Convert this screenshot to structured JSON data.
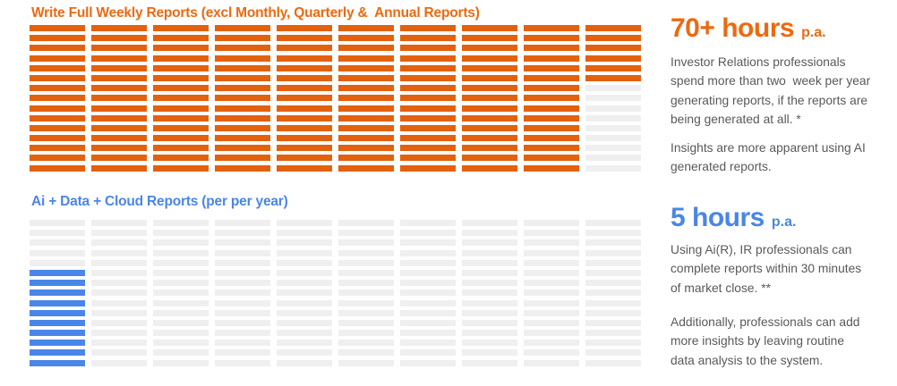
{
  "colors": {
    "orange_heading": "#EC6911",
    "orange_fill": "#E3610E",
    "blue_heading": "#4A86E8",
    "blue_fill": "#4A86E8",
    "empty_cell": "#EFEFEF",
    "body_text": "#595959"
  },
  "top_section": {
    "title": "Write Full Weekly Reports (excl Monthly, Quarterly &  Annual Reports)",
    "stat": {
      "value": "70+ hours",
      "suffix": "p.a."
    },
    "paragraphs": [
      "Investor Relations professionals\nspend more than two  week per year\ngenerating reports, if the reports are\nbeing generated at all. *",
      "Insights are more apparent using AI\ngenerated reports."
    ],
    "grid": {
      "rows": 15,
      "columns": 10,
      "fill_from": "top",
      "column_fill_counts": [
        15,
        15,
        15,
        15,
        15,
        15,
        15,
        15,
        15,
        6
      ],
      "fill_color": "#E3610E",
      "empty_color": "#EFEFEF"
    }
  },
  "bottom_section": {
    "title": "Ai + Data + Cloud Reports (per per year)",
    "stat": {
      "value": "5 hours",
      "suffix": "p.a."
    },
    "paragraphs": [
      "Using Ai(R), IR professionals can\ncomplete reports within 30 minutes\nof market close. **",
      "Additionally, professionals can add\nmore insights by leaving routine\ndata analysis to the system."
    ],
    "grid": {
      "rows": 15,
      "columns": 10,
      "fill_from": "bottom",
      "column_fill_counts": [
        10,
        0,
        0,
        0,
        0,
        0,
        0,
        0,
        0,
        0
      ],
      "fill_color": "#4A86E8",
      "empty_color": "#EFEFEF"
    }
  },
  "chart_data": [
    {
      "type": "waffle",
      "title": "Write Full Weekly Reports (excl Monthly, Quarterly &  Annual Reports)",
      "rows": 15,
      "columns": 10,
      "total_cells": 150,
      "filled_cells": 141,
      "column_fill_counts": [
        15,
        15,
        15,
        15,
        15,
        15,
        15,
        15,
        15,
        6
      ],
      "fill_order": "columns left to right, each column fills top to bottom",
      "value_label": "70+ hours p.a.",
      "fill_color": "#E3610E",
      "empty_color": "#EFEFEF",
      "annotations": [
        "Investor Relations professionals spend more than two  week per year generating reports, if the reports are being generated at all. *",
        "Insights are more apparent using AI generated reports."
      ]
    },
    {
      "type": "waffle",
      "title": "Ai + Data + Cloud Reports (per per year)",
      "rows": 15,
      "columns": 10,
      "total_cells": 150,
      "filled_cells": 10,
      "column_fill_counts": [
        10,
        0,
        0,
        0,
        0,
        0,
        0,
        0,
        0,
        0
      ],
      "fill_order": "first column only, filled bottom to top",
      "value_label": "5 hours p.a.",
      "fill_color": "#4A86E8",
      "empty_color": "#EFEFEF",
      "annotations": [
        "Using Ai(R), IR professionals can complete reports within 30 minutes of market close. **",
        "Additionally, professionals can add more insights by leaving routine data analysis to the system."
      ]
    }
  ]
}
